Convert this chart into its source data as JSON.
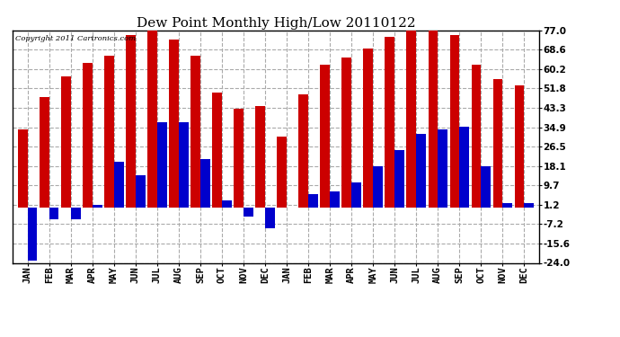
{
  "title": "Dew Point Monthly High/Low 20110122",
  "copyright": "Copyright 2011 Cartronics.com",
  "months": [
    "JAN",
    "FEB",
    "MAR",
    "APR",
    "MAY",
    "JUN",
    "JUL",
    "AUG",
    "SEP",
    "OCT",
    "NOV",
    "DEC",
    "JAN",
    "FEB",
    "MAR",
    "APR",
    "MAY",
    "JUN",
    "JUL",
    "AUG",
    "SEP",
    "OCT",
    "NOV",
    "DEC"
  ],
  "high_values": [
    34,
    48,
    57,
    63,
    66,
    75,
    77,
    73,
    66,
    50,
    43,
    44,
    31,
    49,
    62,
    65,
    69,
    74,
    77,
    77,
    75,
    62,
    56,
    53
  ],
  "low_values": [
    -23,
    -5,
    -5,
    1,
    20,
    14,
    37,
    37,
    21,
    3,
    -4,
    -9,
    0,
    6,
    7,
    11,
    18,
    25,
    32,
    34,
    35,
    18,
    2,
    2
  ],
  "yticks": [
    -24.0,
    -15.6,
    -7.2,
    1.2,
    9.7,
    18.1,
    26.5,
    34.9,
    43.3,
    51.8,
    60.2,
    68.6,
    77.0
  ],
  "ylim": [
    -24.0,
    77.0
  ],
  "bar_width": 0.45,
  "high_color": "#cc0000",
  "low_color": "#0000cc",
  "bg_color": "#ffffff",
  "grid_color": "#aaaaaa",
  "title_fontsize": 11,
  "tick_fontsize": 7.5,
  "copyright_fontsize": 6
}
